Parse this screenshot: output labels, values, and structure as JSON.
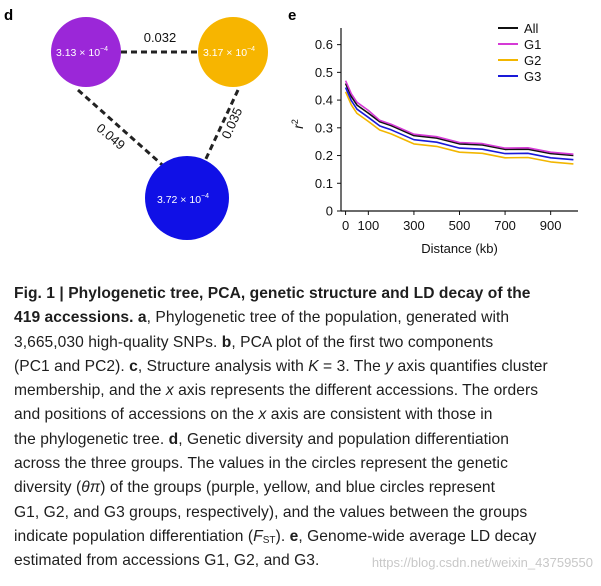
{
  "panel_d": {
    "label": "d",
    "nodes": [
      {
        "name": "G1",
        "value": "3.13 × 10",
        "exp": "−4",
        "color": "#9b27d8"
      },
      {
        "name": "G2",
        "value": "3.17 × 10",
        "exp": "−4",
        "color": "#f7b500"
      },
      {
        "name": "G3",
        "value": "3.72 × 10",
        "exp": "−4",
        "color": "#1010e6"
      }
    ],
    "edges": [
      {
        "from": "G1",
        "to": "G2",
        "fst": "0.032"
      },
      {
        "from": "G1",
        "to": "G3",
        "fst": "0.049"
      },
      {
        "from": "G2",
        "to": "G3",
        "fst": "0.035"
      }
    ]
  },
  "chart_data": {
    "label": "e",
    "type": "line",
    "xlabel": "Distance (kb)",
    "ylabel": "r",
    "ylabel_sup": "2",
    "xlim": [
      -20,
      1020
    ],
    "ylim": [
      0,
      0.66
    ],
    "xticks": [
      0,
      100,
      300,
      500,
      700,
      900
    ],
    "xtick_labels": [
      "0",
      "100",
      "300",
      "500",
      "700",
      "900"
    ],
    "yticks": [
      0,
      0.1,
      0.2,
      0.3,
      0.4,
      0.5,
      0.6
    ],
    "ytick_labels": [
      "0",
      "0.1",
      "0.2",
      "0.3",
      "0.4",
      "0.5",
      "0.6"
    ],
    "x": [
      0,
      25,
      50,
      100,
      150,
      200,
      300,
      400,
      500,
      600,
      700,
      800,
      900,
      1000
    ],
    "series": [
      {
        "name": "All",
        "color": "#111111",
        "values": [
          0.46,
          0.41,
          0.385,
          0.35,
          0.325,
          0.305,
          0.275,
          0.26,
          0.245,
          0.235,
          0.225,
          0.22,
          0.21,
          0.2
        ]
      },
      {
        "name": "G1",
        "color": "#d53ad6",
        "values": [
          0.47,
          0.42,
          0.395,
          0.36,
          0.33,
          0.31,
          0.28,
          0.265,
          0.25,
          0.24,
          0.23,
          0.225,
          0.215,
          0.205
        ]
      },
      {
        "name": "G2",
        "color": "#f2b600",
        "values": [
          0.43,
          0.38,
          0.355,
          0.32,
          0.295,
          0.275,
          0.245,
          0.23,
          0.215,
          0.205,
          0.195,
          0.19,
          0.18,
          0.17
        ]
      },
      {
        "name": "G3",
        "color": "#1a1ad8",
        "values": [
          0.445,
          0.395,
          0.37,
          0.335,
          0.31,
          0.29,
          0.26,
          0.245,
          0.23,
          0.22,
          0.21,
          0.205,
          0.195,
          0.185
        ]
      }
    ],
    "legend_position": "top-right"
  },
  "caption": {
    "title_bold": "Fig. 1 | Phylogenetic tree, PCA, genetic structure and LD decay of the",
    "title_bold2": "419 accessions.",
    "a_label": "a",
    "a_text_1": ", Phylogenetic tree of the population, generated with",
    "a_text_2": "3,665,030 high-quality SNPs.",
    "b_label": "b",
    "b_text_1": ", PCA plot of the first two components",
    "b_text_2": "(PC1 and PC2).",
    "c_label": "c",
    "c_text_1": ", Structure analysis with",
    "c_k": "K",
    "c_text_2": " = 3. The",
    "c_y": "y",
    "c_text_3": " axis quantifies cluster",
    "c_text_4": "membership, and the",
    "c_x": "x",
    "c_text_5": " axis represents the different accessions. The orders",
    "c_text_6": "and positions of accessions on the",
    "c_x2": "x",
    "c_text_7": " axis are consistent with those in",
    "c_text_8": "the phylogenetic tree.",
    "d_label": "d",
    "d_text_1": ", Genetic diversity and population differentiation",
    "d_text_2": "across the three groups. The values in the circles represent the genetic",
    "d_text_3": "diversity (",
    "d_theta": "θπ",
    "d_text_4": ") of the groups (purple, yellow, and blue circles represent",
    "d_text_5": "G1, G2, and G3 groups, respectively), and the values between the groups",
    "d_text_6": "indicate population differentiation (",
    "d_fst": "F",
    "d_fst_sub": "ST",
    "d_text_7": ").",
    "e_label": "e",
    "e_text_1": ", Genome-wide average LD decay",
    "e_text_2": "estimated from accessions G1, G2, and G3."
  },
  "watermark": "https://blog.csdn.net/weixin_43759550"
}
